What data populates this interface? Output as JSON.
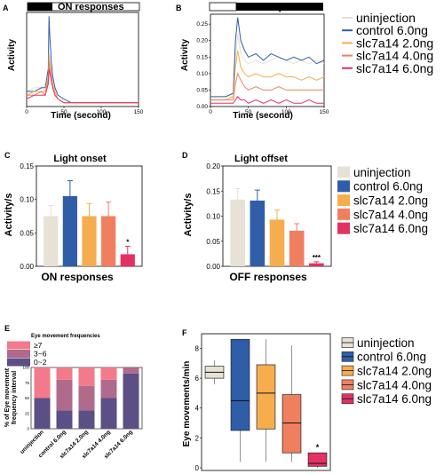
{
  "colors": {
    "uninjection": "#e8e1d5",
    "control": "#2f5da8",
    "s2": "#f6ad4e",
    "s4": "#f07f5f",
    "s6": "#e33262",
    "eye_ge7": "#f27a8a",
    "eye_3_6": "#b06a8c",
    "eye_0_2": "#5c4f86"
  },
  "panels": {
    "a": {
      "letter": "A",
      "bar_label": "ON responses",
      "ylabel": "Activity",
      "xlabel": "Time (second)",
      "xticks": [
        "0",
        "50",
        "100",
        "150"
      ],
      "yticks": []
    },
    "b": {
      "letter": "B",
      "bar_label": "OFF responses",
      "ylabel": "Activity",
      "xlabel": "Time (second)",
      "xticks": [
        "0",
        "50",
        "100",
        "150"
      ],
      "yticks": [
        "0.00",
        "0.05",
        "0.10",
        "0.15",
        "0.20",
        "0.25"
      ]
    },
    "c": {
      "letter": "C",
      "title": "Light onset",
      "ylabel": "Activity/s",
      "xlabel": "ON responses",
      "yticks": [
        "0.00",
        "0.05",
        "0.10",
        "0.15"
      ],
      "annotation": "*"
    },
    "d": {
      "letter": "D",
      "title": "Light offset",
      "ylabel": "Activity/s",
      "xlabel": "OFF responses",
      "yticks": [
        "0.00",
        "0.05",
        "0.10",
        "0.15",
        "0.20"
      ],
      "annotation": "***"
    },
    "e": {
      "letter": "E",
      "title": "Eye movement frequencies",
      "ylabel": "% of Eye movement\nfrequency interval",
      "yticks": [
        "0",
        "25",
        "50",
        "75",
        "100"
      ]
    },
    "f": {
      "letter": "F",
      "ylabel": "Eye movements/min",
      "yticks": [
        "0",
        "2",
        "4",
        "6",
        "8"
      ],
      "annotation": "*"
    }
  },
  "legend_labels": [
    "uninjection",
    "control 6.0ng",
    "slc7a14 2.0ng",
    "slc7a14 4.0ng",
    "slc7a14 6.0ng"
  ],
  "legend_e": [
    "≥7",
    "3~6",
    "0~2"
  ],
  "chart_data": [
    {
      "panel": "A",
      "type": "line",
      "xlim": [
        0,
        150
      ],
      "ylim": [
        0,
        0.25
      ],
      "series_x": [
        0,
        10,
        20,
        25,
        29,
        30,
        31,
        33,
        35,
        38,
        42,
        50,
        60,
        80,
        100,
        120,
        150
      ],
      "series": [
        {
          "name": "uninjection",
          "values": [
            0.04,
            0.05,
            0.05,
            0.04,
            0.06,
            0.12,
            0.1,
            0.07,
            0.05,
            0.03,
            0.02,
            0.01,
            0.01,
            0.01,
            0.01,
            0.01,
            0.01
          ]
        },
        {
          "name": "control 6.0ng",
          "values": [
            0.04,
            0.04,
            0.05,
            0.05,
            0.1,
            0.24,
            0.19,
            0.12,
            0.08,
            0.05,
            0.03,
            0.02,
            0.01,
            0.01,
            0.01,
            0.01,
            0.01
          ]
        },
        {
          "name": "slc7a14 2.0ng",
          "values": [
            0.03,
            0.04,
            0.04,
            0.04,
            0.08,
            0.14,
            0.12,
            0.09,
            0.06,
            0.04,
            0.02,
            0.01,
            0.01,
            0.01,
            0.01,
            0.01,
            0.01
          ]
        },
        {
          "name": "slc7a14 4.0ng",
          "values": [
            0.03,
            0.03,
            0.04,
            0.03,
            0.07,
            0.12,
            0.1,
            0.08,
            0.05,
            0.03,
            0.02,
            0.01,
            0.01,
            0.01,
            0.01,
            0.01,
            0.01
          ]
        },
        {
          "name": "slc7a14 6.0ng",
          "values": [
            0.02,
            0.03,
            0.03,
            0.03,
            0.06,
            0.1,
            0.09,
            0.07,
            0.05,
            0.03,
            0.02,
            0.01,
            0.01,
            0.01,
            0.01,
            0.01,
            0.01
          ]
        }
      ]
    },
    {
      "panel": "B",
      "type": "line",
      "xlim": [
        0,
        150
      ],
      "ylim": [
        0,
        0.28
      ],
      "series_x": [
        0,
        10,
        20,
        30,
        33,
        36,
        40,
        45,
        50,
        60,
        70,
        80,
        90,
        100,
        110,
        120,
        130,
        140,
        150
      ],
      "series": [
        {
          "name": "uninjection",
          "values": [
            0.03,
            0.03,
            0.03,
            0.03,
            0.15,
            0.22,
            0.16,
            0.14,
            0.13,
            0.14,
            0.13,
            0.14,
            0.15,
            0.14,
            0.13,
            0.14,
            0.13,
            0.14,
            0.13
          ]
        },
        {
          "name": "control 6.0ng",
          "values": [
            0.03,
            0.03,
            0.03,
            0.04,
            0.2,
            0.27,
            0.2,
            0.17,
            0.15,
            0.16,
            0.14,
            0.16,
            0.15,
            0.14,
            0.15,
            0.14,
            0.15,
            0.13,
            0.14
          ]
        },
        {
          "name": "slc7a14 2.0ng",
          "values": [
            0.02,
            0.02,
            0.02,
            0.03,
            0.12,
            0.17,
            0.12,
            0.1,
            0.09,
            0.1,
            0.09,
            0.09,
            0.1,
            0.09,
            0.09,
            0.08,
            0.09,
            0.08,
            0.09
          ]
        },
        {
          "name": "slc7a14 4.0ng",
          "values": [
            0.02,
            0.02,
            0.02,
            0.02,
            0.07,
            0.1,
            0.08,
            0.06,
            0.05,
            0.06,
            0.05,
            0.05,
            0.06,
            0.05,
            0.05,
            0.05,
            0.05,
            0.05,
            0.05
          ]
        },
        {
          "name": "slc7a14 6.0ng",
          "values": [
            0.01,
            0.01,
            0.01,
            0.01,
            0.02,
            0.03,
            0.02,
            0.02,
            0.01,
            0.02,
            0.01,
            0.02,
            0.01,
            0.02,
            0.01,
            0.01,
            0.02,
            0.01,
            0.01
          ]
        }
      ]
    },
    {
      "panel": "C",
      "type": "bar",
      "ylim": [
        0,
        0.15
      ],
      "categories": [
        "uninjection",
        "control 6.0ng",
        "slc7a14 2.0ng",
        "slc7a14 4.0ng",
        "slc7a14 6.0ng"
      ],
      "values": [
        0.075,
        0.105,
        0.075,
        0.075,
        0.018
      ],
      "errors": [
        0.016,
        0.023,
        0.019,
        0.021,
        0.012
      ]
    },
    {
      "panel": "D",
      "type": "bar",
      "ylim": [
        0,
        0.2
      ],
      "categories": [
        "uninjection",
        "control 6.0ng",
        "slc7a14 2.0ng",
        "slc7a14 4.0ng",
        "slc7a14 6.0ng"
      ],
      "values": [
        0.133,
        0.131,
        0.093,
        0.071,
        0.006
      ],
      "errors": [
        0.022,
        0.021,
        0.019,
        0.014,
        0.003
      ]
    },
    {
      "panel": "E",
      "type": "bar",
      "stacked": true,
      "ylim": [
        0,
        100
      ],
      "categories": [
        "uninjection",
        "control 6.0ng",
        "slc7a14 2.0ng",
        "slc7a14 4.0ng",
        "slc7a14 6.0ng"
      ],
      "series": [
        {
          "name": "0~2",
          "values": [
            50,
            30,
            30,
            50,
            90
          ]
        },
        {
          "name": "3~6",
          "values": [
            0,
            50,
            40,
            30,
            10
          ]
        },
        {
          "name": "≥7",
          "values": [
            50,
            20,
            30,
            20,
            0
          ]
        }
      ]
    },
    {
      "panel": "F",
      "type": "box",
      "ylim": [
        0,
        8.8
      ],
      "categories": [
        "uninjection",
        "control 6.0ng",
        "slc7a14 2.0ng",
        "slc7a14 4.0ng",
        "slc7a14 6.0ng"
      ],
      "boxes": [
        {
          "min": 5.6,
          "q1": 6.0,
          "median": 6.4,
          "q3": 6.8,
          "max": 7.2
        },
        {
          "min": 0.4,
          "q1": 2.5,
          "median": 4.5,
          "q3": 8.6,
          "max": 8.6
        },
        {
          "min": 0.4,
          "q1": 2.6,
          "median": 5.0,
          "q3": 6.9,
          "max": 8.6
        },
        {
          "min": 0.4,
          "q1": 1.0,
          "median": 3.0,
          "q3": 4.9,
          "max": 8.2
        },
        {
          "min": 0.0,
          "q1": 0.1,
          "median": 0.3,
          "q3": 1.0,
          "max": 1.0
        }
      ]
    }
  ]
}
